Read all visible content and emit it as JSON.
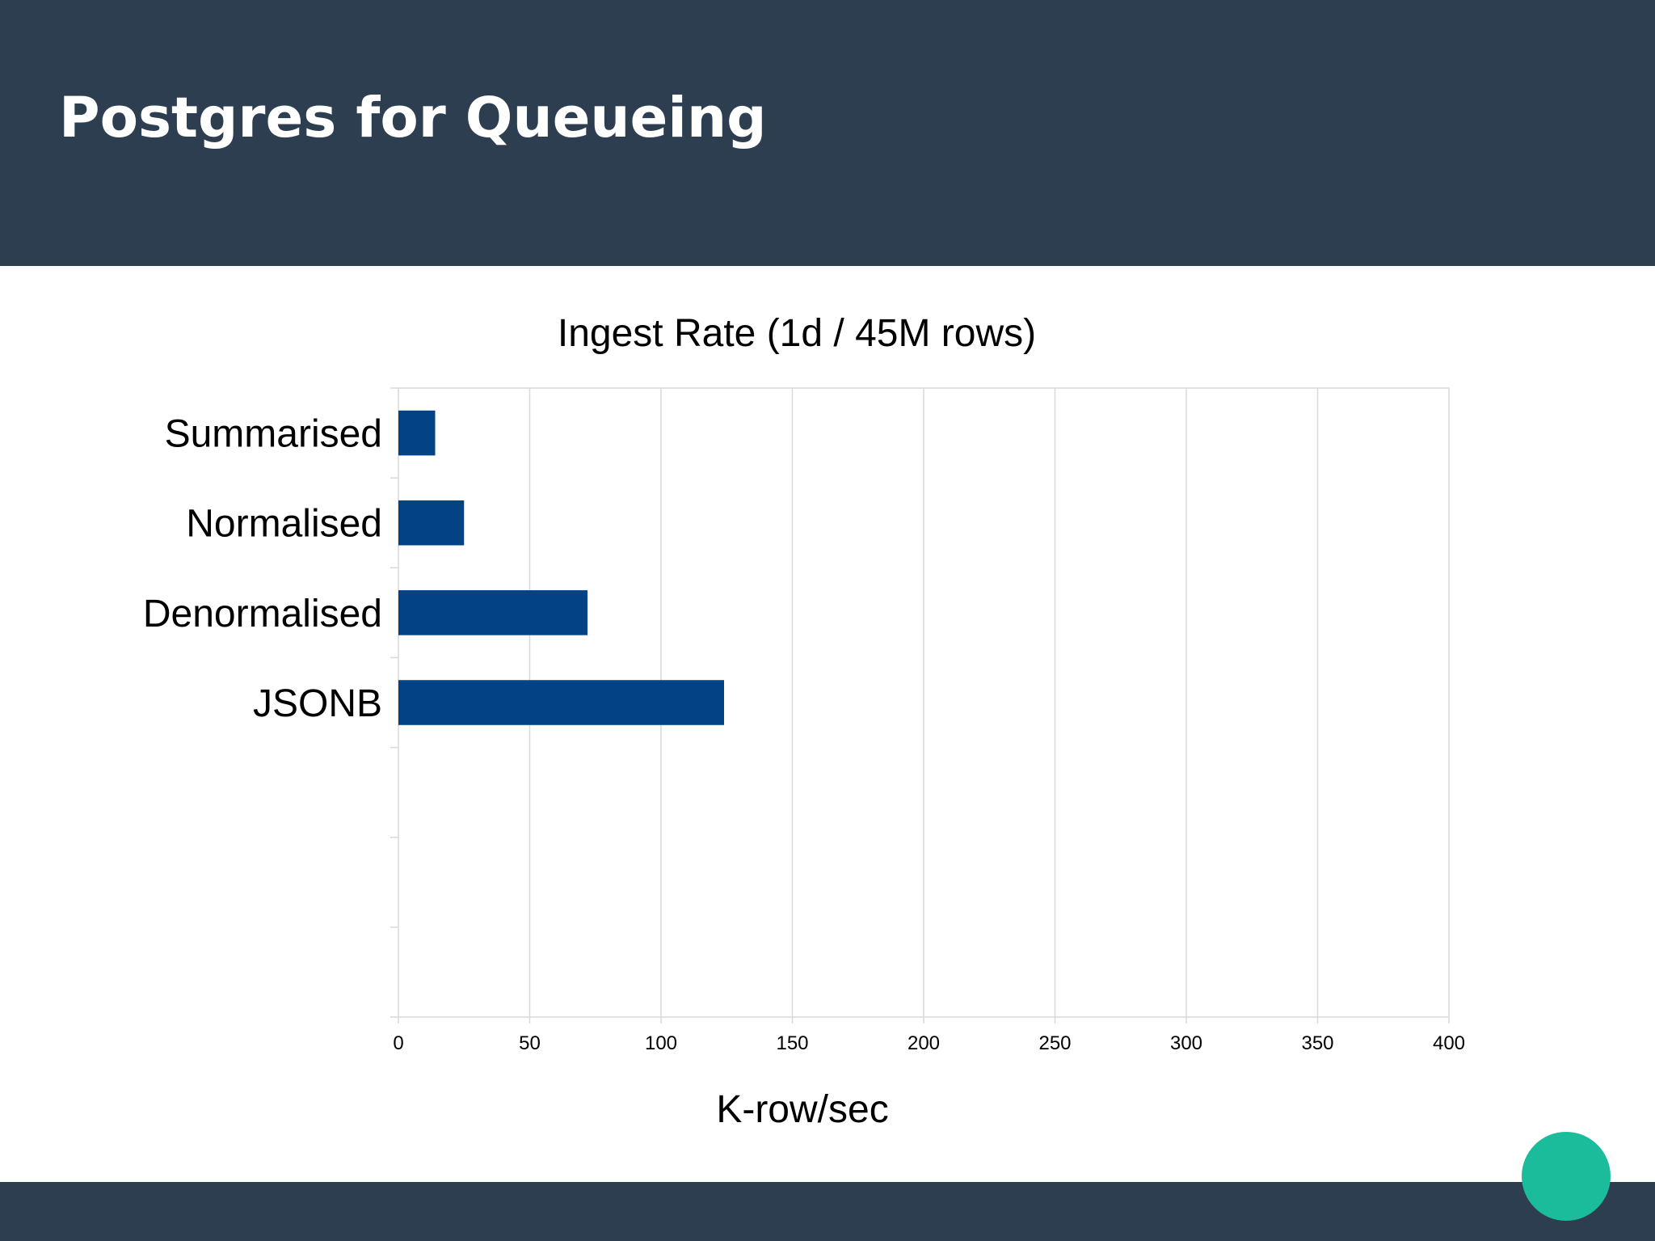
{
  "slide": {
    "title": "Postgres for Queueing"
  },
  "colors": {
    "header": "#2d3e50",
    "footer": "#2d3e50",
    "accent": "#1abc9c",
    "bar": "#034385",
    "grid": "#d9d9d9",
    "text": "#000000"
  },
  "accent_icon": "circle-icon",
  "chart_data": {
    "type": "bar",
    "orientation": "horizontal",
    "title": "Ingest Rate (1d / 45M rows)",
    "xlabel": "K-row/sec",
    "ylabel": "",
    "categories": [
      "Summarised",
      "Normalised",
      "Denormalised",
      "JSONB",
      "",
      "",
      ""
    ],
    "values": [
      14,
      25,
      72,
      124,
      null,
      null,
      null
    ],
    "xlim": [
      0,
      400
    ],
    "xticks": [
      0,
      50,
      100,
      150,
      200,
      250,
      300,
      350,
      400
    ],
    "grid": "vertical",
    "legend": "none"
  }
}
